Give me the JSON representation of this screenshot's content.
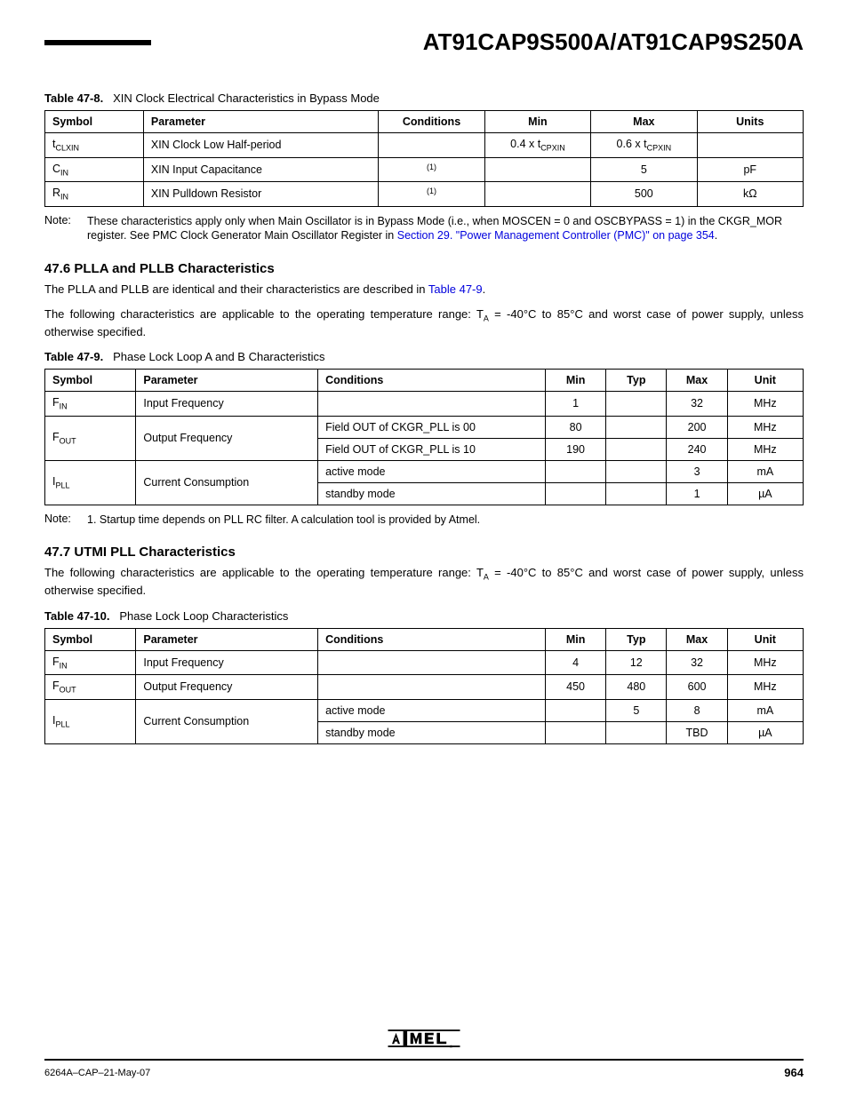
{
  "header": {
    "title": "AT91CAP9S500A/AT91CAP9S250A"
  },
  "table478": {
    "caption_num": "Table 47-8.",
    "caption_text": "XIN Clock Electrical Characteristics in Bypass Mode",
    "headers": [
      "Symbol",
      "Parameter",
      "Conditions",
      "Min",
      "Max",
      "Units"
    ],
    "rows": [
      {
        "sym": "t",
        "sub": "CLXIN",
        "param": "XIN Clock Low Half-period",
        "cond": "",
        "min": "0.4 x t",
        "min_sub": "CPXIN",
        "max": "0.6 x t",
        "max_sub": "CPXIN",
        "units": ""
      },
      {
        "sym": "C",
        "sub": "IN",
        "param": "XIN Input Capacitance",
        "cond_sup": "(1)",
        "min": "",
        "max": "5",
        "units": "pF"
      },
      {
        "sym": "R",
        "sub": "IN",
        "param": "XIN Pulldown Resistor",
        "cond_sup": "(1)",
        "min": "",
        "max": "500",
        "units": "kΩ"
      }
    ]
  },
  "note478": {
    "label": "Note:",
    "text_a": "These characteristics apply only when Main Oscillator is in Bypass Mode (i.e., when MOSCEN = 0 and OSCBYPASS = 1) in the CKGR_MOR register. See PMC Clock Generator Main Oscillator Register in ",
    "link": "Section 29. \"Power Management Controller (PMC)\" on page 354",
    "text_b": "."
  },
  "sec476": {
    "heading": "47.6   PLLA and PLLB Characteristics",
    "p1_a": "The PLLA and PLLB are identical and their characteristics are described in ",
    "p1_link": "Table 47-9",
    "p1_b": ".",
    "p2": "The following characteristics are applicable to the operating temperature range: T",
    "p2_sub": "A",
    "p2_b": " = -40°C to 85°C and worst case of power supply, unless otherwise specified."
  },
  "table479": {
    "caption_num": "Table 47-9.",
    "caption_text": "Phase Lock Loop A and B Characteristics",
    "headers": [
      "Symbol",
      "Parameter",
      "Conditions",
      "Min",
      "Typ",
      "Max",
      "Unit"
    ],
    "rows": [
      {
        "sym": "F",
        "sub": "IN",
        "param": "Input Frequency",
        "cond": "",
        "min": "1",
        "typ": "",
        "max": "32",
        "unit": "MHz"
      },
      {
        "sym": "F",
        "sub": "OUT",
        "param": "Output Frequency",
        "rowspan": 2,
        "cond": "Field OUT of CKGR_PLL is 00",
        "min": "80",
        "typ": "",
        "max": "200",
        "unit": "MHz"
      },
      {
        "cond": "Field OUT of CKGR_PLL is 10",
        "min": "190",
        "typ": "",
        "max": "240",
        "unit": "MHz"
      },
      {
        "sym": "I",
        "sub": "PLL",
        "param": "Current Consumption",
        "rowspan": 2,
        "cond": "active mode",
        "min": "",
        "typ": "",
        "max": "3",
        "unit": "mA"
      },
      {
        "cond": "standby mode",
        "min": "",
        "typ": "",
        "max": "1",
        "unit": "µA"
      }
    ]
  },
  "note479": {
    "label": "Note:",
    "text": "1. Startup time depends on PLL RC filter. A calculation tool is provided by Atmel."
  },
  "sec477": {
    "heading": "47.7   UTMI PLL Characteristics",
    "p1": "The following characteristics are applicable to the operating temperature range: T",
    "p1_sub": "A",
    "p1_b": " = -40°C to 85°C and worst case of power supply, unless otherwise specified."
  },
  "table4710": {
    "caption_num": "Table 47-10.",
    "caption_text": "Phase Lock Loop Characteristics",
    "headers": [
      "Symbol",
      "Parameter",
      "Conditions",
      "Min",
      "Typ",
      "Max",
      "Unit"
    ],
    "rows": [
      {
        "sym": "F",
        "sub": "IN",
        "param": "Input Frequency",
        "cond": "",
        "min": "4",
        "typ": "12",
        "max": "32",
        "unit": "MHz"
      },
      {
        "sym": "F",
        "sub": "OUT",
        "param": "Output Frequency",
        "cond": "",
        "min": "450",
        "typ": "480",
        "max": "600",
        "unit": "MHz"
      },
      {
        "sym": "I",
        "sub": "PLL",
        "param": "Current Consumption",
        "rowspan": 2,
        "cond": "active mode",
        "min": "",
        "typ": "5",
        "max": "8",
        "unit": "mA"
      },
      {
        "cond": "standby mode",
        "min": "",
        "typ": "",
        "max": "TBD",
        "unit": "µA"
      }
    ]
  },
  "footer": {
    "doc_id": "6264A–CAP–21-May-07",
    "page": "964"
  },
  "colwidths": {
    "t478": [
      "13%",
      "31%",
      "14%",
      "14%",
      "14%",
      "14%"
    ],
    "t479": [
      "12%",
      "24%",
      "30%",
      "8%",
      "8%",
      "8%",
      "10%"
    ],
    "t4710": [
      "12%",
      "24%",
      "30%",
      "8%",
      "8%",
      "8%",
      "10%"
    ]
  }
}
